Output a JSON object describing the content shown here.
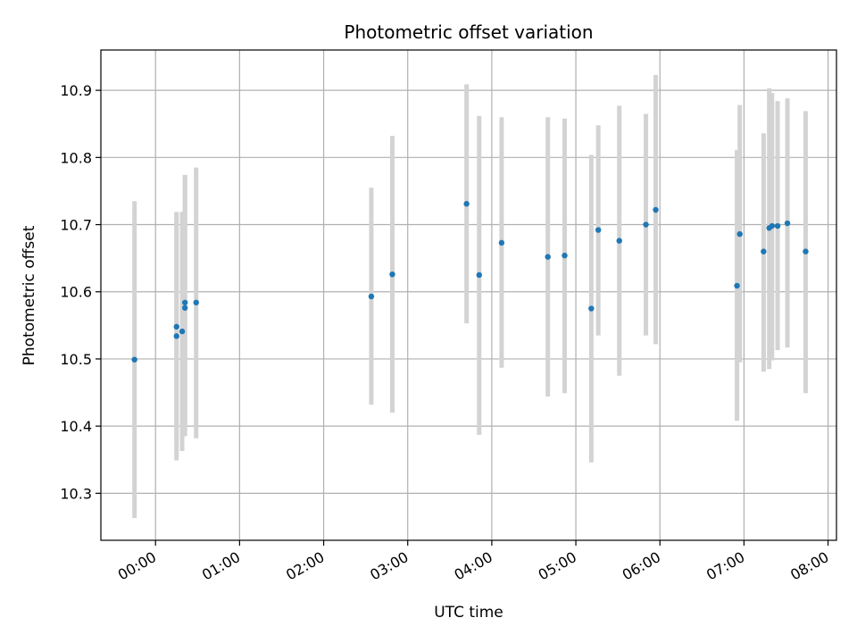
{
  "chart_data": {
    "type": "scatter",
    "title": "Photometric offset variation",
    "xlabel": "UTC time",
    "ylabel": "Photometric offset",
    "grid": true,
    "xlim": [
      "23:21",
      "08:06"
    ],
    "ylim": [
      10.23,
      10.96
    ],
    "x_ticks": [
      "00:00",
      "01:00",
      "02:00",
      "03:00",
      "04:00",
      "05:00",
      "06:00",
      "07:00",
      "08:00"
    ],
    "y_ticks": [
      10.3,
      10.4,
      10.5,
      10.6,
      10.7,
      10.8,
      10.9
    ],
    "marker_color": "#1f77b4",
    "errorbar_color": "#d3d3d3",
    "series": [
      {
        "points": [
          {
            "x": "23:45",
            "y": 10.499,
            "ylow": 10.263,
            "yhigh": 10.735
          },
          {
            "x": "00:15",
            "y": 10.548,
            "ylow": 10.38,
            "yhigh": 10.716
          },
          {
            "x": "00:15",
            "y": 10.534,
            "ylow": 10.349,
            "yhigh": 10.719
          },
          {
            "x": "00:19",
            "y": 10.541,
            "ylow": 10.363,
            "yhigh": 10.719
          },
          {
            "x": "00:21",
            "y": 10.576,
            "ylow": 10.385,
            "yhigh": 10.774
          },
          {
            "x": "00:21",
            "y": 10.584,
            "ylow": 10.393,
            "yhigh": 10.774
          },
          {
            "x": "00:29",
            "y": 10.584,
            "ylow": 10.382,
            "yhigh": 10.785
          },
          {
            "x": "02:34",
            "y": 10.593,
            "ylow": 10.432,
            "yhigh": 10.755
          },
          {
            "x": "02:49",
            "y": 10.626,
            "ylow": 10.42,
            "yhigh": 10.832
          },
          {
            "x": "03:42",
            "y": 10.731,
            "ylow": 10.553,
            "yhigh": 10.909
          },
          {
            "x": "03:51",
            "y": 10.625,
            "ylow": 10.387,
            "yhigh": 10.862
          },
          {
            "x": "04:07",
            "y": 10.673,
            "ylow": 10.487,
            "yhigh": 10.86
          },
          {
            "x": "04:40",
            "y": 10.652,
            "ylow": 10.444,
            "yhigh": 10.86
          },
          {
            "x": "04:52",
            "y": 10.654,
            "ylow": 10.449,
            "yhigh": 10.858
          },
          {
            "x": "05:11",
            "y": 10.575,
            "ylow": 10.346,
            "yhigh": 10.804
          },
          {
            "x": "05:16",
            "y": 10.692,
            "ylow": 10.535,
            "yhigh": 10.848
          },
          {
            "x": "05:31",
            "y": 10.676,
            "ylow": 10.475,
            "yhigh": 10.877
          },
          {
            "x": "05:50",
            "y": 10.7,
            "ylow": 10.535,
            "yhigh": 10.865
          },
          {
            "x": "05:57",
            "y": 10.722,
            "ylow": 10.522,
            "yhigh": 10.923
          },
          {
            "x": "06:55",
            "y": 10.609,
            "ylow": 10.408,
            "yhigh": 10.811
          },
          {
            "x": "06:57",
            "y": 10.686,
            "ylow": 10.495,
            "yhigh": 10.878
          },
          {
            "x": "07:14",
            "y": 10.66,
            "ylow": 10.481,
            "yhigh": 10.836
          },
          {
            "x": "07:18",
            "y": 10.695,
            "ylow": 10.485,
            "yhigh": 10.903
          },
          {
            "x": "07:20",
            "y": 10.698,
            "ylow": 10.498,
            "yhigh": 10.896
          },
          {
            "x": "07:24",
            "y": 10.698,
            "ylow": 10.513,
            "yhigh": 10.884
          },
          {
            "x": "07:31",
            "y": 10.702,
            "ylow": 10.517,
            "yhigh": 10.888
          },
          {
            "x": "07:44",
            "y": 10.66,
            "ylow": 10.449,
            "yhigh": 10.869
          }
        ]
      }
    ]
  }
}
